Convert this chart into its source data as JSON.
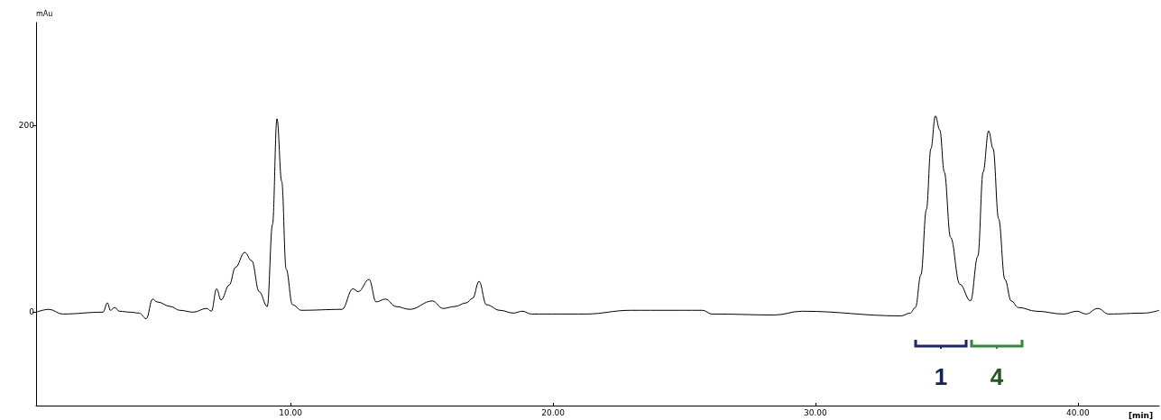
{
  "chart_data": {
    "type": "line",
    "xlabel": "[min]",
    "ylabel": "mAu",
    "x": [
      0.31,
      0.79,
      1.31,
      2.85,
      3.02,
      3.13,
      3.3,
      3.47,
      3.88,
      4.23,
      4.5,
      4.74,
      4.91,
      5.43,
      5.77,
      6.29,
      6.8,
      6.98,
      7.18,
      7.35,
      7.66,
      7.9,
      8.25,
      8.52,
      8.8,
      9.11,
      9.31,
      9.48,
      9.66,
      9.83,
      10.07,
      10.41,
      11.96,
      12.37,
      12.58,
      12.99,
      13.26,
      13.61,
      14.02,
      14.54,
      15.4,
      15.81,
      16.25,
      16.7,
      16.94,
      17.18,
      17.46,
      17.97,
      18.49,
      18.83,
      19.18,
      21.24,
      22.96,
      25.7,
      26.05,
      28.45,
      29.48,
      33.26,
      33.61,
      33.81,
      34.02,
      34.23,
      34.4,
      34.57,
      34.74,
      34.91,
      35.15,
      35.5,
      35.91,
      36.19,
      36.39,
      36.6,
      36.77,
      36.98,
      37.22,
      37.46,
      37.73,
      38.42,
      39.45,
      39.97,
      40.31,
      40.76,
      41.17,
      42.54,
      43.1
    ],
    "series": [
      {
        "color": "#000000",
        "values": [
          0,
          3,
          -2,
          0,
          10,
          2,
          5,
          1,
          0,
          -1,
          -7,
          14,
          11,
          6,
          2,
          0,
          4,
          1,
          25,
          13,
          29,
          48,
          64,
          55,
          22,
          6,
          94,
          207,
          140,
          46,
          8,
          2,
          3,
          25,
          22,
          35,
          11,
          14,
          6,
          3,
          12,
          4,
          6,
          10,
          15,
          33,
          8,
          2,
          -1,
          1,
          -2,
          -2,
          2,
          2,
          -2,
          -3,
          1,
          -4,
          -1,
          5,
          40,
          110,
          175,
          210,
          195,
          150,
          80,
          30,
          12,
          60,
          150,
          194,
          175,
          100,
          35,
          12,
          5,
          1,
          -2,
          1,
          -2,
          4,
          -2,
          -1,
          2
        ]
      }
    ],
    "xlim": [
      0.3,
      43.1
    ],
    "ylim": [
      -100,
      310
    ],
    "xticks": [
      {
        "value": 10,
        "label": "10.00"
      },
      {
        "value": 20,
        "label": "20.00"
      },
      {
        "value": 30,
        "label": "30.00"
      },
      {
        "value": 40,
        "label": "40.00"
      }
    ],
    "yticks": [
      0,
      200
    ],
    "grid": false,
    "marker": "none",
    "line_style": "solid",
    "annotations": [
      "1",
      "4"
    ]
  }
}
